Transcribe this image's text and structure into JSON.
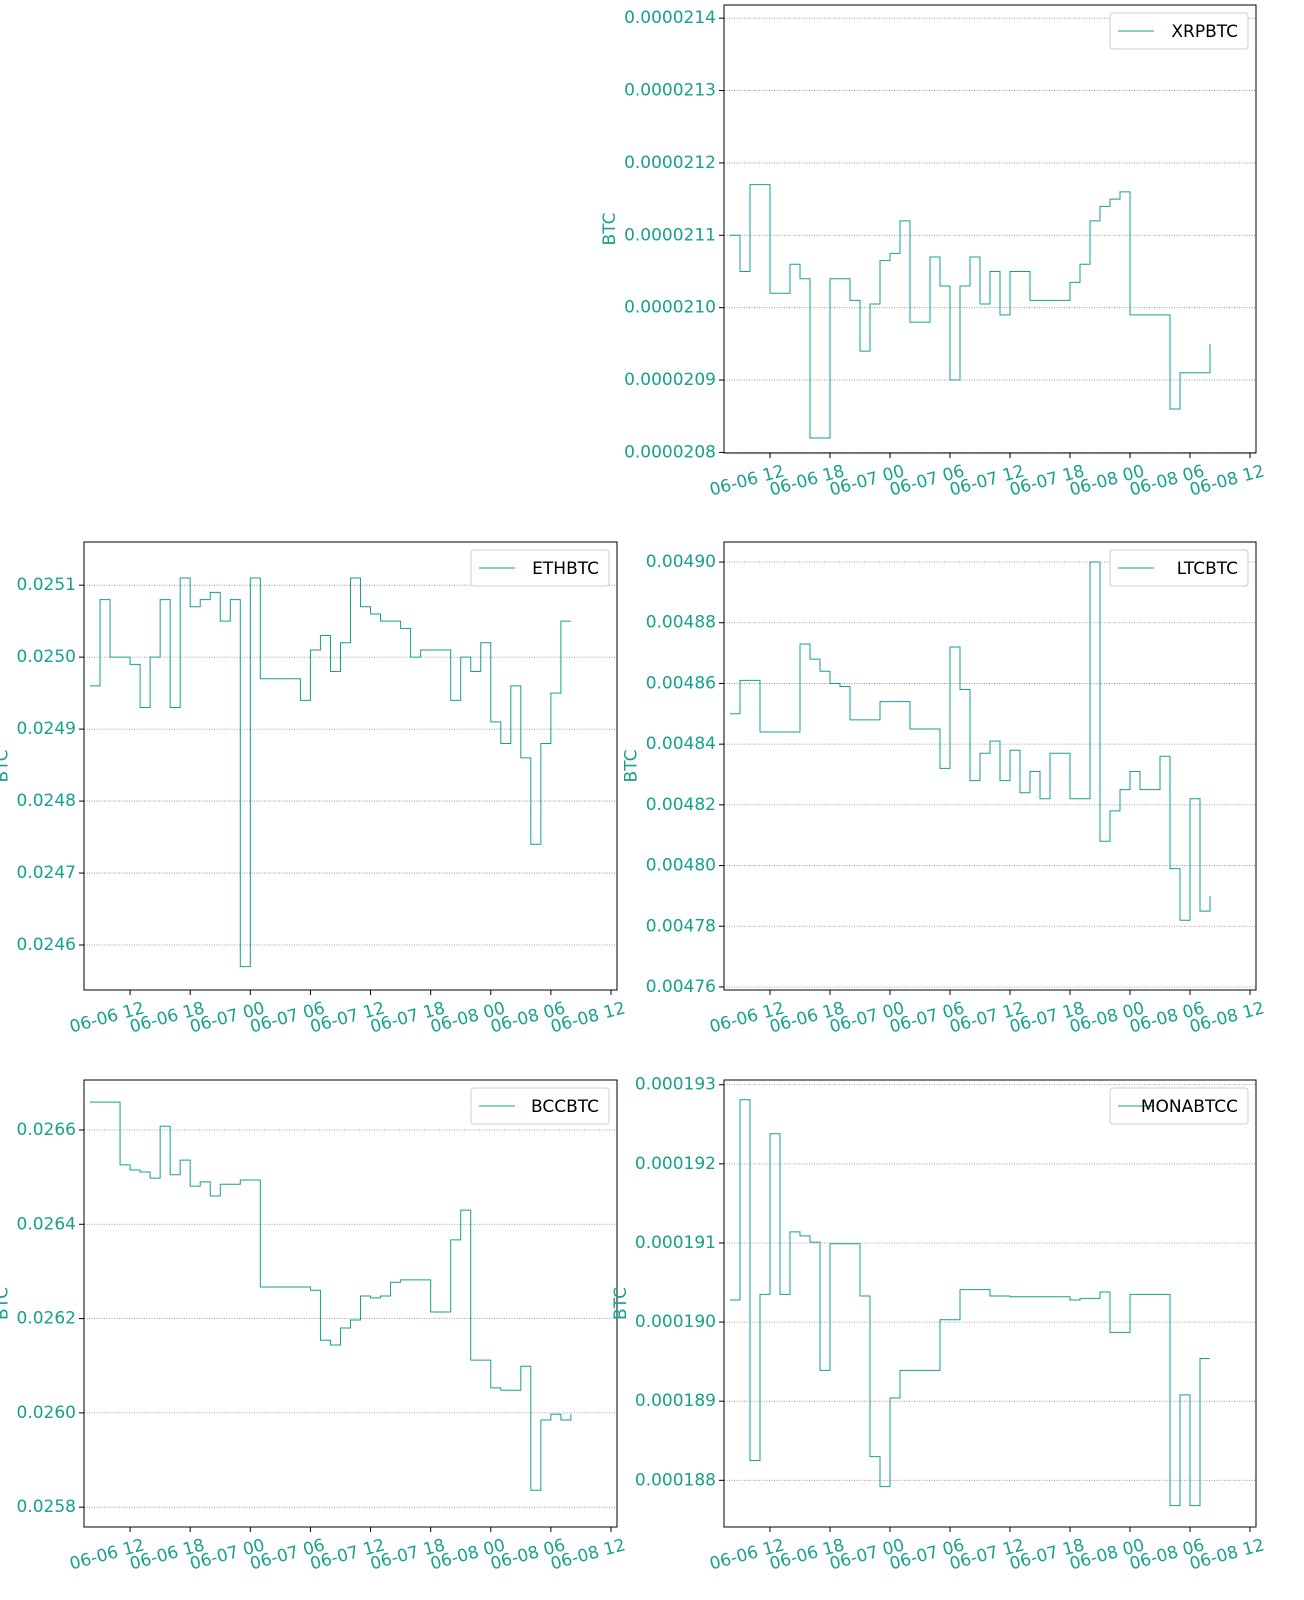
{
  "chart_data": [
    {
      "type": "line",
      "drawstyle": "steps-post",
      "ylabel": "BTC",
      "grid": true,
      "legend": "upper right",
      "x": [
        "06-06 08",
        "06-06 09",
        "06-06 10",
        "06-06 11",
        "06-06 12",
        "06-06 13",
        "06-06 14",
        "06-06 15",
        "06-06 16",
        "06-06 17",
        "06-06 18",
        "06-06 19",
        "06-06 20",
        "06-06 21",
        "06-06 22",
        "06-06 23",
        "06-07 00",
        "06-07 01",
        "06-07 02",
        "06-07 03",
        "06-07 04",
        "06-07 05",
        "06-07 06",
        "06-07 07",
        "06-07 08",
        "06-07 09",
        "06-07 10",
        "06-07 11",
        "06-07 12",
        "06-07 13",
        "06-07 14",
        "06-07 15",
        "06-07 16",
        "06-07 17",
        "06-07 18",
        "06-07 19",
        "06-07 20",
        "06-07 21",
        "06-07 22",
        "06-07 23",
        "06-08 00",
        "06-08 01",
        "06-08 02",
        "06-08 03",
        "06-08 04",
        "06-08 05",
        "06-08 06",
        "06-08 07",
        "06-08 08"
      ],
      "series": [
        {
          "name": "XRPBTC",
          "color": "#17a08c",
          "values": [
            2.11e-05,
            2.105e-05,
            2.117e-05,
            2.117e-05,
            2.102e-05,
            2.102e-05,
            2.106e-05,
            2.104e-05,
            2.082e-05,
            2.082e-05,
            2.104e-05,
            2.104e-05,
            2.101e-05,
            2.094e-05,
            2.1005e-05,
            2.1065e-05,
            2.1075e-05,
            2.112e-05,
            2.098e-05,
            2.098e-05,
            2.107e-05,
            2.103e-05,
            2.09e-05,
            2.103e-05,
            2.107e-05,
            2.1005e-05,
            2.105e-05,
            2.099e-05,
            2.105e-05,
            2.105e-05,
            2.101e-05,
            2.101e-05,
            2.101e-05,
            2.101e-05,
            2.1035e-05,
            2.106e-05,
            2.112e-05,
            2.114e-05,
            2.115e-05,
            2.116e-05,
            2.099e-05,
            2.099e-05,
            2.099e-05,
            2.099e-05,
            2.086e-05,
            2.091e-05,
            2.091e-05,
            2.091e-05,
            2.095e-05
          ]
        }
      ],
      "xlim": [
        "06-06 07:24",
        "06-08 12:36"
      ],
      "xticks": [
        "06-06 12",
        "06-06 18",
        "06-07 00",
        "06-07 06",
        "06-07 12",
        "06-07 18",
        "06-08 00",
        "06-08 06",
        "06-08 12"
      ],
      "ylim": [
        2.07992e-05,
        2.14182e-05
      ],
      "yticks": [
        {
          "value": 2.08e-05,
          "label": "0.0000208"
        },
        {
          "value": 2.09e-05,
          "label": "0.0000209"
        },
        {
          "value": 2.1e-05,
          "label": "0.0000210"
        },
        {
          "value": 2.11e-05,
          "label": "0.0000211"
        },
        {
          "value": 2.12e-05,
          "label": "0.0000212"
        },
        {
          "value": 2.13e-05,
          "label": "0.0000213"
        },
        {
          "value": 2.14e-05,
          "label": "0.0000214"
        }
      ]
    },
    {
      "type": "line",
      "drawstyle": "steps-post",
      "ylabel": "BTC",
      "grid": true,
      "legend": "upper right",
      "x": [
        "06-06 08",
        "06-06 09",
        "06-06 10",
        "06-06 11",
        "06-06 12",
        "06-06 13",
        "06-06 14",
        "06-06 15",
        "06-06 16",
        "06-06 17",
        "06-06 18",
        "06-06 19",
        "06-06 20",
        "06-06 21",
        "06-06 22",
        "06-06 23",
        "06-07 00",
        "06-07 01",
        "06-07 02",
        "06-07 03",
        "06-07 04",
        "06-07 05",
        "06-07 06",
        "06-07 07",
        "06-07 08",
        "06-07 09",
        "06-07 10",
        "06-07 11",
        "06-07 12",
        "06-07 13",
        "06-07 14",
        "06-07 15",
        "06-07 16",
        "06-07 17",
        "06-07 18",
        "06-07 19",
        "06-07 20",
        "06-07 21",
        "06-07 22",
        "06-07 23",
        "06-08 00",
        "06-08 01",
        "06-08 02",
        "06-08 03",
        "06-08 04",
        "06-08 05",
        "06-08 06",
        "06-08 07",
        "06-08 08"
      ],
      "series": [
        {
          "name": "ETHBTC",
          "color": "#17a08c",
          "values": [
            0.02496,
            0.02508,
            0.025,
            0.025,
            0.02499,
            0.02493,
            0.025,
            0.02508,
            0.02493,
            0.02511,
            0.02507,
            0.02508,
            0.02509,
            0.02505,
            0.02508,
            0.02457,
            0.02511,
            0.02497,
            0.02497,
            0.02497,
            0.02497,
            0.02494,
            0.02501,
            0.02503,
            0.02498,
            0.02502,
            0.02511,
            0.02507,
            0.02506,
            0.02505,
            0.02505,
            0.02504,
            0.025,
            0.02501,
            0.02501,
            0.02501,
            0.02494,
            0.025,
            0.02498,
            0.02502,
            0.02491,
            0.02488,
            0.02496,
            0.02486,
            0.02474,
            0.02488,
            0.02495,
            0.02505,
            0.02505
          ]
        }
      ],
      "xlim": [
        "06-06 07:24",
        "06-08 12:36"
      ],
      "xticks": [
        "06-06 12",
        "06-06 18",
        "06-07 00",
        "06-07 06",
        "06-07 12",
        "06-07 18",
        "06-08 00",
        "06-08 06",
        "06-08 12"
      ],
      "ylim": [
        0.0245375,
        0.02516
      ],
      "yticks": [
        {
          "value": 0.0246,
          "label": "0.0246"
        },
        {
          "value": 0.0247,
          "label": "0.0247"
        },
        {
          "value": 0.0248,
          "label": "0.0248"
        },
        {
          "value": 0.0249,
          "label": "0.0249"
        },
        {
          "value": 0.025,
          "label": "0.0250"
        },
        {
          "value": 0.0251,
          "label": "0.0251"
        }
      ]
    },
    {
      "type": "line",
      "drawstyle": "steps-post",
      "ylabel": "BTC",
      "grid": true,
      "legend": "upper right",
      "x": [
        "06-06 08",
        "06-06 09",
        "06-06 10",
        "06-06 11",
        "06-06 12",
        "06-06 13",
        "06-06 14",
        "06-06 15",
        "06-06 16",
        "06-06 17",
        "06-06 18",
        "06-06 19",
        "06-06 20",
        "06-06 21",
        "06-06 22",
        "06-06 23",
        "06-07 00",
        "06-07 01",
        "06-07 02",
        "06-07 03",
        "06-07 04",
        "06-07 05",
        "06-07 06",
        "06-07 07",
        "06-07 08",
        "06-07 09",
        "06-07 10",
        "06-07 11",
        "06-07 12",
        "06-07 13",
        "06-07 14",
        "06-07 15",
        "06-07 16",
        "06-07 17",
        "06-07 18",
        "06-07 19",
        "06-07 20",
        "06-07 21",
        "06-07 22",
        "06-07 23",
        "06-08 00",
        "06-08 01",
        "06-08 02",
        "06-08 03",
        "06-08 04",
        "06-08 05",
        "06-08 06",
        "06-08 07",
        "06-08 08"
      ],
      "series": [
        {
          "name": "LTCBTC",
          "color": "#17a08c",
          "values": [
            0.00485,
            0.004861,
            0.004861,
            0.004844,
            0.004844,
            0.004844,
            0.004844,
            0.004873,
            0.004868,
            0.004864,
            0.00486,
            0.004859,
            0.004848,
            0.004848,
            0.004848,
            0.004854,
            0.004854,
            0.004854,
            0.004845,
            0.004845,
            0.004845,
            0.004832,
            0.004872,
            0.004858,
            0.004828,
            0.004837,
            0.004841,
            0.004828,
            0.004838,
            0.004824,
            0.004831,
            0.004822,
            0.004837,
            0.004837,
            0.004822,
            0.004822,
            0.0049,
            0.004808,
            0.004818,
            0.004825,
            0.004831,
            0.004825,
            0.004825,
            0.004836,
            0.004799,
            0.004782,
            0.004822,
            0.004785,
            0.00479
          ]
        }
      ],
      "xlim": [
        "06-06 07:24",
        "06-08 12:36"
      ],
      "xticks": [
        "06-06 12",
        "06-06 18",
        "06-07 00",
        "06-07 06",
        "06-07 12",
        "06-07 18",
        "06-08 00",
        "06-08 06",
        "06-08 12"
      ],
      "ylim": [
        0.004759,
        0.0049066
      ],
      "yticks": [
        {
          "value": 0.00476,
          "label": "0.00476"
        },
        {
          "value": 0.00478,
          "label": "0.00478"
        },
        {
          "value": 0.0048,
          "label": "0.00480"
        },
        {
          "value": 0.00482,
          "label": "0.00482"
        },
        {
          "value": 0.00484,
          "label": "0.00484"
        },
        {
          "value": 0.00486,
          "label": "0.00486"
        },
        {
          "value": 0.00488,
          "label": "0.00488"
        },
        {
          "value": 0.0049,
          "label": "0.00490"
        }
      ]
    },
    {
      "type": "line",
      "drawstyle": "steps-post",
      "ylabel": "BTC",
      "grid": true,
      "legend": "upper right",
      "x": [
        "06-06 08",
        "06-06 09",
        "06-06 10",
        "06-06 11",
        "06-06 12",
        "06-06 13",
        "06-06 14",
        "06-06 15",
        "06-06 16",
        "06-06 17",
        "06-06 18",
        "06-06 19",
        "06-06 20",
        "06-06 21",
        "06-06 22",
        "06-06 23",
        "06-07 00",
        "06-07 01",
        "06-07 02",
        "06-07 03",
        "06-07 04",
        "06-07 05",
        "06-07 06",
        "06-07 07",
        "06-07 08",
        "06-07 09",
        "06-07 10",
        "06-07 11",
        "06-07 12",
        "06-07 13",
        "06-07 14",
        "06-07 15",
        "06-07 16",
        "06-07 17",
        "06-07 18",
        "06-07 19",
        "06-07 20",
        "06-07 21",
        "06-07 22",
        "06-07 23",
        "06-08 00",
        "06-08 01",
        "06-08 02",
        "06-08 03",
        "06-08 04",
        "06-08 05",
        "06-08 06",
        "06-08 07",
        "06-08 08"
      ],
      "series": [
        {
          "name": "BCCBTC",
          "color": "#17a08c",
          "values": [
            0.026659,
            0.026659,
            0.026659,
            0.026526,
            0.026515,
            0.026511,
            0.026498,
            0.026608,
            0.026505,
            0.026536,
            0.026481,
            0.02649,
            0.02646,
            0.026485,
            0.026485,
            0.026494,
            0.026494,
            0.026267,
            0.026267,
            0.026267,
            0.026267,
            0.026267,
            0.02626,
            0.026154,
            0.026144,
            0.02618,
            0.026197,
            0.026248,
            0.026244,
            0.026248,
            0.026277,
            0.026282,
            0.026282,
            0.026282,
            0.026214,
            0.026214,
            0.026367,
            0.02643,
            0.026112,
            0.026112,
            0.026053,
            0.026048,
            0.026048,
            0.026099,
            0.025836,
            0.025985,
            0.025997,
            0.025985,
            0.025997
          ]
        }
      ],
      "xlim": [
        "06-06 07:24",
        "06-08 12:36"
      ],
      "xticks": [
        "06-06 12",
        "06-06 18",
        "06-07 00",
        "06-07 06",
        "06-07 12",
        "06-07 18",
        "06-08 00",
        "06-08 06",
        "06-08 12"
      ],
      "ylim": [
        0.025758,
        0.026706
      ],
      "yticks": [
        {
          "value": 0.0258,
          "label": "0.0258"
        },
        {
          "value": 0.026,
          "label": "0.0260"
        },
        {
          "value": 0.0262,
          "label": "0.0262"
        },
        {
          "value": 0.0264,
          "label": "0.0264"
        },
        {
          "value": 0.0266,
          "label": "0.0266"
        }
      ]
    },
    {
      "type": "line",
      "drawstyle": "steps-post",
      "ylabel": "BTC",
      "grid": true,
      "legend": "upper right",
      "x": [
        "06-06 08",
        "06-06 09",
        "06-06 10",
        "06-06 11",
        "06-06 12",
        "06-06 13",
        "06-06 14",
        "06-06 15",
        "06-06 16",
        "06-06 17",
        "06-06 18",
        "06-06 19",
        "06-06 20",
        "06-06 21",
        "06-06 22",
        "06-06 23",
        "06-07 00",
        "06-07 01",
        "06-07 02",
        "06-07 03",
        "06-07 04",
        "06-07 05",
        "06-07 06",
        "06-07 07",
        "06-07 08",
        "06-07 09",
        "06-07 10",
        "06-07 11",
        "06-07 12",
        "06-07 13",
        "06-07 14",
        "06-07 15",
        "06-07 16",
        "06-07 17",
        "06-07 18",
        "06-07 19",
        "06-07 20",
        "06-07 21",
        "06-07 22",
        "06-07 23",
        "06-08 00",
        "06-08 01",
        "06-08 02",
        "06-08 03",
        "06-08 04",
        "06-08 05",
        "06-08 06",
        "06-08 07",
        "06-08 08"
      ],
      "series": [
        {
          "name": "MONABTCC",
          "color": "#17a08c",
          "values": [
            0.00019028,
            0.00019281,
            0.00018825,
            0.00019035,
            0.00019238,
            0.00019035,
            0.00019114,
            0.00019109,
            0.00019101,
            0.00018939,
            0.00019099,
            0.00019099,
            0.00019099,
            0.00019033,
            0.0001883,
            0.00018792,
            0.00018904,
            0.00018939,
            0.00018939,
            0.00018939,
            0.00018939,
            0.00019003,
            0.00019003,
            0.00019041,
            0.00019041,
            0.00019041,
            0.00019033,
            0.00019033,
            0.00019032,
            0.00019032,
            0.00019032,
            0.00019032,
            0.00019032,
            0.00019032,
            0.00019028,
            0.0001903,
            0.0001903,
            0.00019038,
            0.00018987,
            0.00018987,
            0.00019035,
            0.00019035,
            0.00019035,
            0.00019035,
            0.00018768,
            0.00018908,
            0.00018768,
            0.00018954,
            0.00018954
          ]
        }
      ],
      "xlim": [
        "06-06 07:24",
        "06-08 12:36"
      ],
      "xticks": [
        "06-06 12",
        "06-06 18",
        "06-07 00",
        "06-07 06",
        "06-07 12",
        "06-07 18",
        "06-08 00",
        "06-08 06",
        "06-08 12"
      ],
      "ylim": [
        0.00018741,
        0.00019306
      ],
      "yticks": [
        {
          "value": 0.000188,
          "label": "0.000188"
        },
        {
          "value": 0.000189,
          "label": "0.000189"
        },
        {
          "value": 0.00019,
          "label": "0.000190"
        },
        {
          "value": 0.000191,
          "label": "0.000191"
        },
        {
          "value": 0.000192,
          "label": "0.000192"
        },
        {
          "value": 0.000193,
          "label": "0.000193"
        }
      ]
    }
  ]
}
